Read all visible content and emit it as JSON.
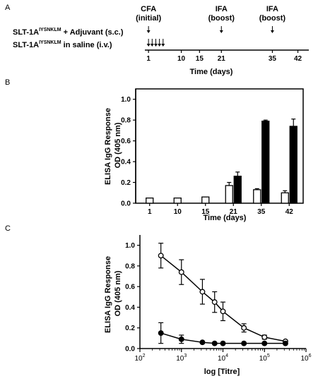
{
  "colors": {
    "ink": "#000000",
    "open_fill": "#ffffff",
    "solid_fill": "#000000"
  },
  "panel_a": {
    "letter": "A",
    "row1_prefix": "SLT-1A",
    "row1_superscript": "IYSNKLM",
    "row1_suffix": " + Adjuvant (s.c.)",
    "row2_prefix": "SLT-1A",
    "row2_superscript": "IYSNKLM",
    "row2_suffix": " in saline (i.v.)",
    "xlabel": "Time (days)",
    "ticks": [
      "1",
      "10",
      "15",
      "21",
      "35",
      "42"
    ],
    "tick_days": [
      1,
      10,
      15,
      21,
      35,
      42
    ],
    "axis_range": [
      0,
      45
    ],
    "events": [
      {
        "day": 1,
        "label1": "CFA",
        "label2": "(initial)"
      },
      {
        "day": 21,
        "label1": "IFA",
        "label2": "(boost)"
      },
      {
        "day": 35,
        "label1": "IFA",
        "label2": "(boost)"
      }
    ],
    "iv_injection_days": [
      1,
      2,
      3,
      4,
      5
    ]
  },
  "chart_data": [
    {
      "panel": "B",
      "type": "bar",
      "categories": [
        "1",
        "10",
        "15",
        "21",
        "35",
        "42"
      ],
      "ylabel_line1": "ELISA IgG Response",
      "ylabel_line2": "OD (405 nm)",
      "xlabel": "Time (days)",
      "ylim": [
        0,
        1.1
      ],
      "yticks": [
        "0.0",
        "0.2",
        "0.4",
        "0.6",
        "0.8",
        "1.0"
      ],
      "ytick_values": [
        0,
        0.2,
        0.4,
        0.6,
        0.8,
        1.0
      ],
      "series": [
        {
          "style": "open",
          "values": [
            0.05,
            0.05,
            0.06,
            0.17,
            0.13,
            0.1
          ],
          "errors": [
            0,
            0,
            0,
            0.03,
            0.01,
            0.02
          ]
        },
        {
          "style": "filled",
          "values": [
            null,
            null,
            null,
            0.26,
            0.79,
            0.74
          ],
          "errors": [
            null,
            null,
            null,
            0.04,
            0.01,
            0.07
          ]
        }
      ]
    },
    {
      "panel": "C",
      "type": "line",
      "scale_x": "log",
      "ylabel_line1": "ELISA IgG Response",
      "ylabel_line2": "OD (405 nm)",
      "xlabel": "log [Titre]",
      "xlim": [
        100,
        1000000
      ],
      "ylim": [
        0,
        1.1
      ],
      "xtick_exponents": [
        "2",
        "3",
        "4",
        "5",
        "6"
      ],
      "xtick_values": [
        100,
        1000,
        10000,
        100000,
        1000000
      ],
      "yticks": [
        "0.0",
        "0.2",
        "0.4",
        "0.6",
        "0.8",
        "1.0"
      ],
      "ytick_values": [
        0,
        0.2,
        0.4,
        0.6,
        0.8,
        1.0
      ],
      "series": [
        {
          "style": "open",
          "x": [
            320,
            1000,
            3200,
            6300,
            10000,
            32000,
            100000,
            320000
          ],
          "y": [
            0.9,
            0.74,
            0.55,
            0.45,
            0.36,
            0.2,
            0.11,
            0.07
          ],
          "errors": [
            0.12,
            0.12,
            0.12,
            0.1,
            0.09,
            0.04,
            0.02,
            0.01
          ]
        },
        {
          "style": "filled",
          "x": [
            320,
            1000,
            3200,
            6300,
            10000,
            32000,
            100000,
            320000
          ],
          "y": [
            0.15,
            0.09,
            0.06,
            0.05,
            0.05,
            0.05,
            0.05,
            0.05
          ],
          "errors": [
            0.1,
            0.04,
            0.01,
            0.01,
            0.01,
            0.01,
            0.01,
            0.01
          ]
        }
      ]
    }
  ],
  "panel_b": {
    "letter": "B"
  },
  "panel_c": {
    "letter": "C"
  }
}
